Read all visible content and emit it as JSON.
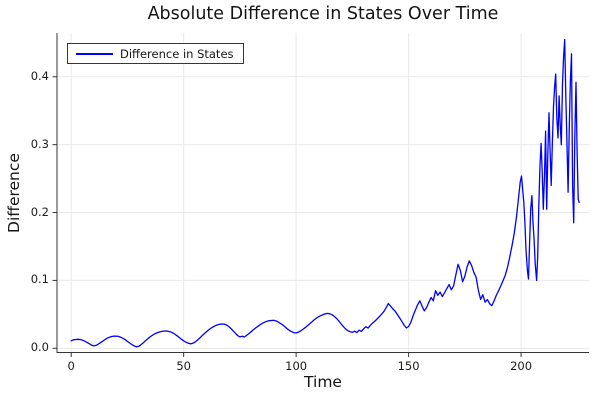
{
  "colors": {
    "line": "#0000ff",
    "grid": "#e9e9e9",
    "spine": "#36363a",
    "text": "#141414",
    "background": "#ffffff"
  },
  "chart_data": {
    "type": "line",
    "title": "Absolute Difference in States Over Time",
    "xlabel": "Time",
    "ylabel": "Difference",
    "grid": true,
    "legend_position": "top-left",
    "xlim": [
      -6.3,
      230.2
    ],
    "ylim": [
      -0.0062,
      0.4645
    ],
    "xticks": {
      "values": [
        0,
        50,
        100,
        150,
        200
      ],
      "labels": [
        "0",
        "50",
        "100",
        "150",
        "200"
      ]
    },
    "yticks": {
      "values": [
        0,
        0.1,
        0.2,
        0.3,
        0.4
      ],
      "labels": [
        "0.0",
        "0.1",
        "0.2",
        "0.3",
        "0.4"
      ]
    },
    "series": [
      {
        "name": "Difference in States",
        "color": "#0000ff",
        "points": [
          [
            0,
            0.011
          ],
          [
            1,
            0.0125
          ],
          [
            2,
            0.013
          ],
          [
            3,
            0.0132
          ],
          [
            4,
            0.013
          ],
          [
            5,
            0.012
          ],
          [
            6,
            0.0105
          ],
          [
            7,
            0.0088
          ],
          [
            8,
            0.0068
          ],
          [
            9,
            0.0048
          ],
          [
            10,
            0.0035
          ],
          [
            11,
            0.0042
          ],
          [
            12,
            0.006
          ],
          [
            13,
            0.0082
          ],
          [
            14,
            0.0105
          ],
          [
            15,
            0.0128
          ],
          [
            16,
            0.0148
          ],
          [
            17,
            0.0163
          ],
          [
            18,
            0.0173
          ],
          [
            19,
            0.0178
          ],
          [
            20,
            0.018
          ],
          [
            21,
            0.0175
          ],
          [
            22,
            0.0163
          ],
          [
            23,
            0.0147
          ],
          [
            24,
            0.0126
          ],
          [
            25,
            0.0102
          ],
          [
            26,
            0.0078
          ],
          [
            27,
            0.0055
          ],
          [
            28,
            0.0035
          ],
          [
            29,
            0.0022
          ],
          [
            30,
            0.003
          ],
          [
            31,
            0.0052
          ],
          [
            32,
            0.008
          ],
          [
            33,
            0.011
          ],
          [
            34,
            0.0139
          ],
          [
            35,
            0.0166
          ],
          [
            36,
            0.019
          ],
          [
            37,
            0.021
          ],
          [
            38,
            0.0226
          ],
          [
            39,
            0.0239
          ],
          [
            40,
            0.0248
          ],
          [
            41,
            0.0253
          ],
          [
            42,
            0.0255
          ],
          [
            43,
            0.0252
          ],
          [
            44,
            0.0244
          ],
          [
            45,
            0.023
          ],
          [
            46,
            0.021
          ],
          [
            47,
            0.0186
          ],
          [
            48,
            0.016
          ],
          [
            49,
            0.0134
          ],
          [
            50,
            0.011
          ],
          [
            51,
            0.009
          ],
          [
            52,
            0.0076
          ],
          [
            53,
            0.0066
          ],
          [
            54,
            0.0072
          ],
          [
            55,
            0.009
          ],
          [
            56,
            0.0116
          ],
          [
            57,
            0.0146
          ],
          [
            58,
            0.0178
          ],
          [
            59,
            0.021
          ],
          [
            60,
            0.024
          ],
          [
            61,
            0.0268
          ],
          [
            62,
            0.0293
          ],
          [
            63,
            0.0314
          ],
          [
            64,
            0.0331
          ],
          [
            65,
            0.0344
          ],
          [
            66,
            0.0353
          ],
          [
            67,
            0.0358
          ],
          [
            68,
            0.0356
          ],
          [
            69,
            0.0344
          ],
          [
            70,
            0.0322
          ],
          [
            71,
            0.0292
          ],
          [
            72,
            0.0258
          ],
          [
            73,
            0.0222
          ],
          [
            74,
            0.0188
          ],
          [
            75,
            0.0168
          ],
          [
            76,
            0.0178
          ],
          [
            77,
            0.0166
          ],
          [
            78,
            0.019
          ],
          [
            79,
            0.0216
          ],
          [
            80,
            0.0244
          ],
          [
            81,
            0.0272
          ],
          [
            82,
            0.0299
          ],
          [
            83,
            0.0324
          ],
          [
            84,
            0.0347
          ],
          [
            85,
            0.0368
          ],
          [
            86,
            0.0385
          ],
          [
            87,
            0.0398
          ],
          [
            88,
            0.0406
          ],
          [
            89,
            0.041
          ],
          [
            90,
            0.0412
          ],
          [
            91,
            0.0404
          ],
          [
            92,
            0.0389
          ],
          [
            93,
            0.0367
          ],
          [
            94,
            0.0344
          ],
          [
            95,
            0.0316
          ],
          [
            96,
            0.0288
          ],
          [
            97,
            0.0263
          ],
          [
            98,
            0.0244
          ],
          [
            99,
            0.0231
          ],
          [
            100,
            0.0226
          ],
          [
            101,
            0.0238
          ],
          [
            102,
            0.0255
          ],
          [
            103,
            0.0279
          ],
          [
            104,
            0.0304
          ],
          [
            105,
            0.0331
          ],
          [
            106,
            0.0359
          ],
          [
            107,
            0.0389
          ],
          [
            108,
            0.0419
          ],
          [
            109,
            0.0445
          ],
          [
            110,
            0.0466
          ],
          [
            111,
            0.0482
          ],
          [
            112,
            0.0497
          ],
          [
            113,
            0.0508
          ],
          [
            114,
            0.0514
          ],
          [
            115,
            0.0508
          ],
          [
            116,
            0.0494
          ],
          [
            117,
            0.0469
          ],
          [
            118,
            0.0439
          ],
          [
            119,
            0.0401
          ],
          [
            120,
            0.0359
          ],
          [
            121,
            0.0319
          ],
          [
            122,
            0.0285
          ],
          [
            123,
            0.0259
          ],
          [
            124,
            0.0244
          ],
          [
            125,
            0.0235
          ],
          [
            126,
            0.0252
          ],
          [
            127,
            0.0231
          ],
          [
            128,
            0.0266
          ],
          [
            129,
            0.0249
          ],
          [
            130,
            0.0287
          ],
          [
            131,
            0.0316
          ],
          [
            132,
            0.0297
          ],
          [
            133,
            0.0338
          ],
          [
            134,
            0.0371
          ],
          [
            135,
            0.0401
          ],
          [
            136,
            0.0431
          ],
          [
            137,
            0.0466
          ],
          [
            138,
            0.0502
          ],
          [
            139,
            0.0541
          ],
          [
            140,
            0.0598
          ],
          [
            141,
            0.0658
          ],
          [
            142,
            0.0621
          ],
          [
            143,
            0.0581
          ],
          [
            144,
            0.0548
          ],
          [
            145,
            0.0499
          ],
          [
            146,
            0.0448
          ],
          [
            147,
            0.0398
          ],
          [
            148,
            0.0342
          ],
          [
            149,
            0.0301
          ],
          [
            150,
            0.0321
          ],
          [
            151,
            0.0382
          ],
          [
            152,
            0.0478
          ],
          [
            153,
            0.0561
          ],
          [
            154,
            0.0641
          ],
          [
            155,
            0.0699
          ],
          [
            156,
            0.0621
          ],
          [
            157,
            0.0551
          ],
          [
            158,
            0.0601
          ],
          [
            159,
            0.0678
          ],
          [
            160,
            0.0748
          ],
          [
            161,
            0.0699
          ],
          [
            162,
            0.0849
          ],
          [
            163,
            0.0781
          ],
          [
            164,
            0.0829
          ],
          [
            165,
            0.0761
          ],
          [
            166,
            0.0819
          ],
          [
            167,
            0.0879
          ],
          [
            168,
            0.0938
          ],
          [
            169,
            0.0861
          ],
          [
            170,
            0.0919
          ],
          [
            171,
            0.1079
          ],
          [
            172,
            0.1238
          ],
          [
            173,
            0.1148
          ],
          [
            174,
            0.0979
          ],
          [
            175,
            0.1059
          ],
          [
            176,
            0.1199
          ],
          [
            177,
            0.1288
          ],
          [
            178,
            0.1219
          ],
          [
            179,
            0.1119
          ],
          [
            180,
            0.1049
          ],
          [
            181,
            0.0859
          ],
          [
            182,
            0.0719
          ],
          [
            183,
            0.0789
          ],
          [
            184,
            0.0679
          ],
          [
            185,
            0.0719
          ],
          [
            186,
            0.0659
          ],
          [
            187,
            0.0629
          ],
          [
            188,
            0.0699
          ],
          [
            189,
            0.0779
          ],
          [
            190,
            0.0849
          ],
          [
            191,
            0.0919
          ],
          [
            192,
            0.0999
          ],
          [
            193,
            0.1079
          ],
          [
            194,
            0.1199
          ],
          [
            195,
            0.1349
          ],
          [
            196,
            0.1519
          ],
          [
            197,
            0.1699
          ],
          [
            198,
            0.1949
          ],
          [
            199,
            0.2249
          ],
          [
            199.6,
            0.2449
          ],
          [
            200.2,
            0.2539
          ],
          [
            200.7,
            0.2349
          ],
          [
            201.2,
            0.2149
          ],
          [
            201.7,
            0.1849
          ],
          [
            202.2,
            0.1449
          ],
          [
            202.8,
            0.1149
          ],
          [
            203.3,
            0.1019
          ],
          [
            203.8,
            0.1549
          ],
          [
            204.3,
            0.2049
          ],
          [
            204.8,
            0.2249
          ],
          [
            205.3,
            0.1849
          ],
          [
            205.8,
            0.1599
          ],
          [
            206.3,
            0.1249
          ],
          [
            206.9,
            0.0999
          ],
          [
            207.4,
            0.1349
          ],
          [
            207.9,
            0.2099
          ],
          [
            208.4,
            0.2699
          ],
          [
            208.9,
            0.3019
          ],
          [
            209.4,
            0.2599
          ],
          [
            209.9,
            0.2049
          ],
          [
            210.4,
            0.2549
          ],
          [
            210.9,
            0.3199
          ],
          [
            211.4,
            0.2049
          ],
          [
            211.9,
            0.2849
          ],
          [
            212.4,
            0.3469
          ],
          [
            212.9,
            0.2899
          ],
          [
            213.4,
            0.2399
          ],
          [
            213.9,
            0.2999
          ],
          [
            214.4,
            0.3559
          ],
          [
            214.9,
            0.3849
          ],
          [
            215.4,
            0.4039
          ],
          [
            215.9,
            0.3399
          ],
          [
            216.4,
            0.3099
          ],
          [
            216.9,
            0.3719
          ],
          [
            217.4,
            0.3299
          ],
          [
            217.9,
            0.2999
          ],
          [
            218.4,
            0.3899
          ],
          [
            218.9,
            0.4299
          ],
          [
            219.4,
            0.4549
          ],
          [
            219.9,
            0.3719
          ],
          [
            220.4,
            0.2999
          ],
          [
            220.9,
            0.2299
          ],
          [
            221.4,
            0.3199
          ],
          [
            221.9,
            0.3899
          ],
          [
            222.4,
            0.4339
          ],
          [
            222.9,
            0.2399
          ],
          [
            223.4,
            0.1849
          ],
          [
            223.9,
            0.3099
          ],
          [
            224.4,
            0.3919
          ],
          [
            224.9,
            0.2899
          ],
          [
            225.4,
            0.2199
          ],
          [
            225.8,
            0.2149
          ]
        ]
      }
    ]
  }
}
